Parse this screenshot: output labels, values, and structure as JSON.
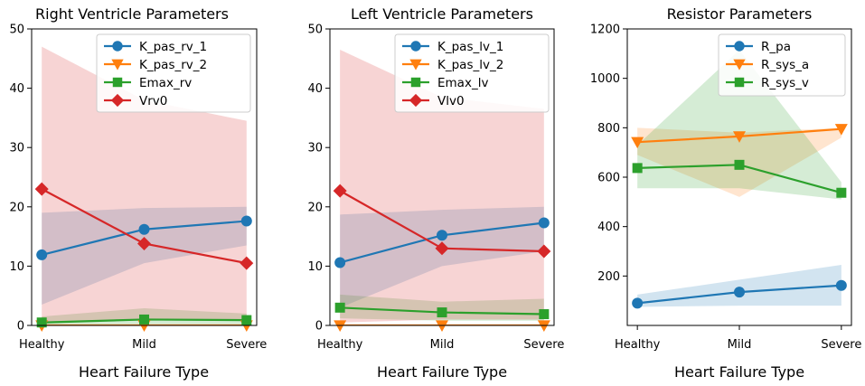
{
  "colors": {
    "blue": "#1f77b4",
    "orange": "#ff7f0e",
    "green": "#2ca02c",
    "red": "#d62728"
  },
  "chart_data": [
    {
      "type": "line",
      "title": "Right Ventricle Parameters",
      "xlabel": "Heart Failure Type",
      "ylabel": "",
      "categories": [
        "Healthy",
        "Mild",
        "Severe"
      ],
      "ylim": [
        0,
        50
      ],
      "yticks": [
        0,
        10,
        20,
        30,
        40,
        50
      ],
      "legend_position": "top-right",
      "series": [
        {
          "name": "K_pas_rv_1",
          "color": "blue",
          "marker": "circle",
          "values": [
            11.9,
            16.2,
            17.6
          ],
          "lower": [
            3.5,
            10.5,
            13.5
          ],
          "upper": [
            19.0,
            19.8,
            20.0
          ]
        },
        {
          "name": "K_pas_rv_2",
          "color": "orange",
          "marker": "triangle-down",
          "values": [
            0.0,
            0.0,
            0.0
          ],
          "lower": [
            0.0,
            0.0,
            0.0
          ],
          "upper": [
            0.2,
            0.2,
            0.2
          ]
        },
        {
          "name": "Emax_rv",
          "color": "green",
          "marker": "square",
          "values": [
            0.5,
            1.0,
            0.9
          ],
          "lower": [
            0.1,
            0.2,
            0.2
          ],
          "upper": [
            1.5,
            2.9,
            2.0
          ]
        },
        {
          "name": "Vrv0",
          "color": "red",
          "marker": "diamond",
          "values": [
            23.0,
            13.8,
            10.5
          ],
          "lower": [
            0.5,
            1.0,
            1.0
          ],
          "upper": [
            47.0,
            38.0,
            34.5
          ]
        }
      ]
    },
    {
      "type": "line",
      "title": "Left Ventricle Parameters",
      "xlabel": "Heart Failure Type",
      "ylabel": "",
      "categories": [
        "Healthy",
        "Mild",
        "Severe"
      ],
      "ylim": [
        0,
        50
      ],
      "yticks": [
        0,
        10,
        20,
        30,
        40,
        50
      ],
      "legend_position": "top-right",
      "series": [
        {
          "name": "K_pas_lv_1",
          "color": "blue",
          "marker": "circle",
          "values": [
            10.6,
            15.2,
            17.3
          ],
          "lower": [
            3.0,
            10.0,
            12.5
          ],
          "upper": [
            18.7,
            19.5,
            20.0
          ]
        },
        {
          "name": "K_pas_lv_2",
          "color": "orange",
          "marker": "triangle-down",
          "values": [
            0.0,
            0.0,
            0.0
          ],
          "lower": [
            0.0,
            0.0,
            0.0
          ],
          "upper": [
            0.2,
            0.2,
            0.2
          ]
        },
        {
          "name": "Emax_lv",
          "color": "green",
          "marker": "square",
          "values": [
            3.0,
            2.2,
            1.9
          ],
          "lower": [
            1.2,
            0.8,
            0.8
          ],
          "upper": [
            5.2,
            4.0,
            4.5
          ]
        },
        {
          "name": "Vlv0",
          "color": "red",
          "marker": "diamond",
          "values": [
            22.7,
            13.0,
            12.5
          ],
          "lower": [
            0.5,
            1.0,
            1.0
          ],
          "upper": [
            46.5,
            38.5,
            36.5
          ]
        }
      ]
    },
    {
      "type": "line",
      "title": "Resistor Parameters",
      "xlabel": "Heart Failure Type",
      "ylabel": "",
      "categories": [
        "Healthy",
        "Mild",
        "Severe"
      ],
      "ylim": [
        0,
        1200
      ],
      "yticks": [
        200,
        400,
        600,
        800,
        1000,
        1200
      ],
      "legend_position": "top-right",
      "series": [
        {
          "name": "R_pa",
          "color": "blue",
          "marker": "circle",
          "values": [
            90,
            135,
            162
          ],
          "lower": [
            75,
            80,
            80
          ],
          "upper": [
            125,
            185,
            245
          ]
        },
        {
          "name": "R_sys_a",
          "color": "orange",
          "marker": "triangle-down",
          "values": [
            742,
            765,
            795
          ],
          "lower": [
            690,
            520,
            760
          ],
          "upper": [
            800,
            780,
            800
          ]
        },
        {
          "name": "R_sys_v",
          "color": "green",
          "marker": "square",
          "values": [
            637,
            650,
            537
          ],
          "lower": [
            555,
            555,
            510
          ],
          "upper": [
            730,
            1115,
            580
          ]
        }
      ]
    }
  ]
}
